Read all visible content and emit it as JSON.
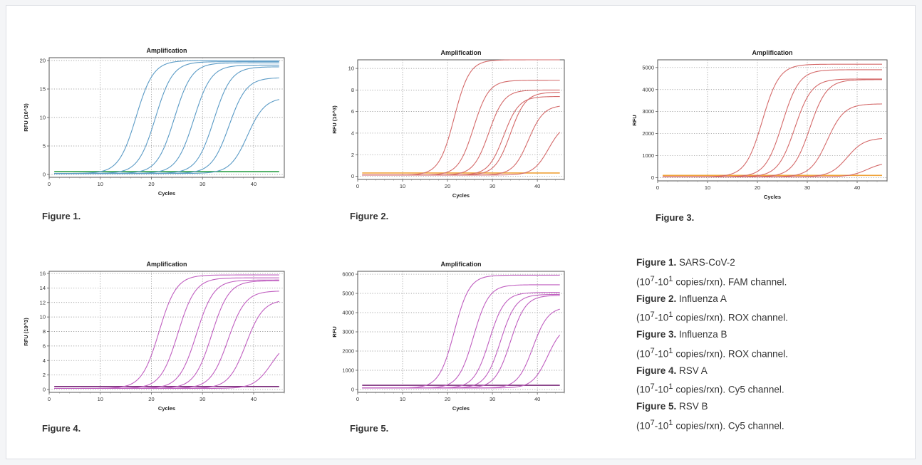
{
  "chart_data": [
    {
      "type": "line",
      "title": "Amplification",
      "xlabel": "Cycles",
      "ylabel": "RFU (10^3)",
      "xlim": [
        0,
        46
      ],
      "ylim": [
        -0.5,
        20.5
      ],
      "xticks": [
        0,
        10,
        20,
        30,
        40
      ],
      "yticks": [
        0,
        5,
        10,
        15,
        20
      ],
      "grid": true,
      "colors": {
        "curve": "#5b9bc6",
        "baseline": "#1e9a3c"
      },
      "curves": [
        {
          "ct": 17.0,
          "plateau": 20.0
        },
        {
          "ct": 20.8,
          "plateau": 19.8
        },
        {
          "ct": 24.5,
          "plateau": 19.6
        },
        {
          "ct": 28.3,
          "plateau": 19.2
        },
        {
          "ct": 32.2,
          "plateau": 18.9
        },
        {
          "ct": 35.2,
          "plateau": 17.0
        },
        {
          "ct": 38.8,
          "plateau": 13.5
        }
      ],
      "baseline": 0.5,
      "caption": "Figure 1."
    },
    {
      "type": "line",
      "title": "Amplification",
      "xlabel": "Cycles",
      "ylabel": "RFU (10^3)",
      "xlim": [
        0,
        46
      ],
      "ylim": [
        -0.3,
        10.8
      ],
      "xticks": [
        0,
        10,
        20,
        30,
        40
      ],
      "yticks": [
        0,
        2,
        4,
        6,
        8,
        10
      ],
      "grid": true,
      "colors": {
        "curve": "#d46a6a",
        "baseline": "#f0a33a"
      },
      "curves": [
        {
          "ct": 21.5,
          "plateau": 10.8
        },
        {
          "ct": 25.8,
          "plateau": 8.9
        },
        {
          "ct": 29.2,
          "plateau": 8.0
        },
        {
          "ct": 32.5,
          "plateau": 7.4
        },
        {
          "ct": 34.0,
          "plateau": 7.8
        },
        {
          "ct": 38.0,
          "plateau": 6.6
        },
        {
          "ct": 42.5,
          "plateau": 5.0
        }
      ],
      "baseline": 0.3,
      "caption": "Figure 2."
    },
    {
      "type": "line",
      "title": "Amplification",
      "xlabel": "Cycles",
      "ylabel": "RFU",
      "xlim": [
        0,
        46
      ],
      "ylim": [
        -150,
        5350
      ],
      "xticks": [
        0,
        10,
        20,
        30,
        40
      ],
      "yticks": [
        0,
        1000,
        2000,
        3000,
        4000,
        5000
      ],
      "grid": true,
      "colors": {
        "curve": "#d46a6a",
        "baseline": "#f0a33a"
      },
      "curves": [
        {
          "ct": 21.0,
          "plateau": 5150
        },
        {
          "ct": 25.0,
          "plateau": 4900
        },
        {
          "ct": 27.5,
          "plateau": 4480
        },
        {
          "ct": 30.5,
          "plateau": 4450
        },
        {
          "ct": 34.0,
          "plateau": 3350
        },
        {
          "ct": 38.0,
          "plateau": 1800
        },
        {
          "ct": 42.0,
          "plateau": 700
        }
      ],
      "baseline": 100,
      "caption": "Figure 3."
    },
    {
      "type": "line",
      "title": "Amplification",
      "xlabel": "Cycles",
      "ylabel": "RFU (10^3)",
      "xlim": [
        0,
        46
      ],
      "ylim": [
        -0.4,
        16.3
      ],
      "xticks": [
        0,
        10,
        20,
        30,
        40
      ],
      "yticks": [
        0,
        2,
        4,
        6,
        8,
        10,
        12,
        14,
        16
      ],
      "grid": true,
      "colors": {
        "curve": "#c05fc0",
        "baseline": "#7a2a7a"
      },
      "curves": [
        {
          "ct": 21.5,
          "plateau": 15.8
        },
        {
          "ct": 25.2,
          "plateau": 15.4
        },
        {
          "ct": 28.8,
          "plateau": 15.1
        },
        {
          "ct": 31.8,
          "plateau": 15.0
        },
        {
          "ct": 35.0,
          "plateau": 13.6
        },
        {
          "ct": 38.5,
          "plateau": 12.4
        },
        {
          "ct": 43.5,
          "plateau": 7.0
        }
      ],
      "baseline": 0.4,
      "caption": "Figure 4."
    },
    {
      "type": "line",
      "title": "Amplification",
      "xlabel": "Cycles",
      "ylabel": "RFU",
      "xlim": [
        0,
        46
      ],
      "ylim": [
        -150,
        6150
      ],
      "xticks": [
        0,
        10,
        20,
        30,
        40
      ],
      "yticks": [
        0,
        1000,
        2000,
        3000,
        4000,
        5000,
        6000
      ],
      "grid": true,
      "colors": {
        "curve": "#c05fc0",
        "baseline": "#7a2a7a"
      },
      "curves": [
        {
          "ct": 21.5,
          "plateau": 5950
        },
        {
          "ct": 25.8,
          "plateau": 5450
        },
        {
          "ct": 29.3,
          "plateau": 5050
        },
        {
          "ct": 31.8,
          "plateau": 4950
        },
        {
          "ct": 34.0,
          "plateau": 4900
        },
        {
          "ct": 39.0,
          "plateau": 4300
        },
        {
          "ct": 42.3,
          "plateau": 3400
        }
      ],
      "baseline": 220,
      "caption": "Figure 5."
    }
  ],
  "legend": [
    {
      "fig": "Figure 1.",
      "target": " SARS-CoV-2",
      "range_a": "(10",
      "exp_a": "7",
      "range_b": "-10",
      "exp_b": "1",
      "channel": " copies/rxn). FAM channel."
    },
    {
      "fig": "Figure 2.",
      "target": " Influenza A",
      "range_a": "(10",
      "exp_a": "7",
      "range_b": "-10",
      "exp_b": "1",
      "channel": " copies/rxn). ROX channel."
    },
    {
      "fig": "Figure 3.",
      "target": "  Influenza B",
      "range_a": "(10",
      "exp_a": "7",
      "range_b": "-10",
      "exp_b": "1",
      "channel": " copies/rxn). ROX channel."
    },
    {
      "fig": "Figure 4.",
      "target": " RSV A",
      "range_a": "(10",
      "exp_a": "7",
      "range_b": "-10",
      "exp_b": "1",
      "channel": " copies/rxn). Cy5 channel."
    },
    {
      "fig": "Figure 5.",
      "target": " RSV B",
      "range_a": "(10",
      "exp_a": "7",
      "range_b": "-10",
      "exp_b": "1",
      "channel": " copies/rxn). Cy5 channel."
    }
  ]
}
